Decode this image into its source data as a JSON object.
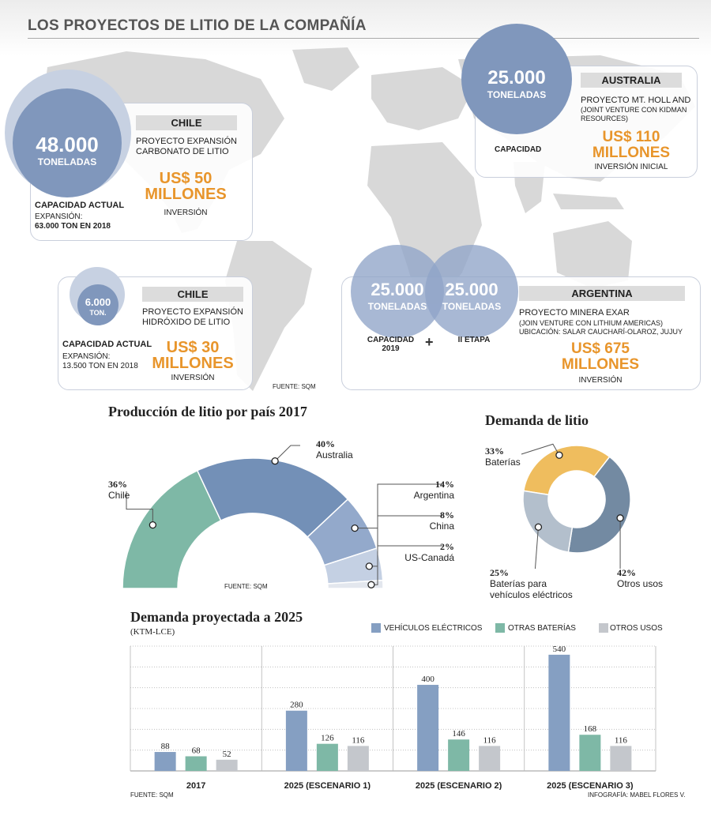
{
  "header": {
    "title": "LOS PROYECTOS DE LITIO DE LA COMPAÑÍA"
  },
  "projects": {
    "chile1": {
      "capacity_num": "48.000",
      "capacity_unit": "TONELADAS",
      "country": "CHILE",
      "project": "PROYECTO EXPANSIÓN CARBONATO DE LITIO",
      "cap_label": "CAPACIDAD ACTUAL",
      "expansion_label": "EXPANSIÓN:",
      "expansion_value": "63.000 TON EN 2018",
      "investment": "US$ 50 MILLONES",
      "investment_label": "INVERSIÓN"
    },
    "australia": {
      "capacity_num": "25.000",
      "capacity_unit": "TONELADAS",
      "country": "AUSTRALIA",
      "project": "PROYECTO MT. HOLL AND",
      "project_note": "(JOINT VENTURE CON KIDMAN RESOURCES)",
      "cap_label": "CAPACIDAD",
      "investment": "US$ 110 MILLONES",
      "investment_label": "INVERSIÓN INICIAL"
    },
    "chile2": {
      "capacity_num": "6.000",
      "capacity_unit": "TON.",
      "country": "CHILE",
      "project": "PROYECTO EXPANSIÓN HIDRÓXIDO DE LITIO",
      "cap_label": "CAPACIDAD ACTUAL",
      "expansion_label": "EXPANSIÓN:",
      "expansion_value": "13.500 TON EN 2018",
      "investment": "US$ 30 MILLONES",
      "investment_label": "INVERSIÓN"
    },
    "argentina": {
      "capacity_a": "25.000",
      "capacity_b": "25.000",
      "capacity_unit": "TONELADAS",
      "cap_a_label": "CAPACIDAD 2019",
      "plus": "+",
      "cap_b_label": "II ETAPA",
      "country": "ARGENTINA",
      "project": "PROYECTO MINERA EXAR",
      "project_note1": "(JOIN VENTURE CON LITHIUM AMERICAS)",
      "project_note2": "UBICACIÓN: SALAR CAUCHARÍ-OLAROZ, JUJUY",
      "investment": "US$ 675 MILLONES",
      "investment_label": "INVERSIÓN"
    },
    "source": "FUENTE: SQM"
  },
  "chart_data": [
    {
      "type": "pie",
      "title": "Producción de litio por país 2017",
      "slices": [
        {
          "label": "Chile",
          "value": 36,
          "pct_text": "36%",
          "color": "#7eb8a6"
        },
        {
          "label": "Australia",
          "value": 40,
          "pct_text": "40%",
          "color": "#7390b7"
        },
        {
          "label": "Argentina",
          "value": 14,
          "pct_text": "14%",
          "color": "#93a9cb"
        },
        {
          "label": "China",
          "value": 8,
          "pct_text": "8%",
          "color": "#c4d0e3"
        },
        {
          "label": "US-Canadá",
          "value": 2,
          "pct_text": "2%",
          "color": "#e3e7ee"
        }
      ],
      "source": "FUENTE: SQM"
    },
    {
      "type": "pie",
      "title": "Demanda de litio",
      "slices": [
        {
          "label": "Baterías",
          "value": 33,
          "pct_text": "33%",
          "color": "#efbd5e"
        },
        {
          "label": "Otros usos",
          "value": 42,
          "pct_text": "42%",
          "color": "#738aa2"
        },
        {
          "label": "Baterías para vehículos eléctricos",
          "value": 25,
          "pct_text": "25%",
          "color": "#b3bfcc"
        }
      ]
    },
    {
      "type": "bar",
      "title": "Demanda proyectada a 2025",
      "subtitle": "(KTM-LCE)",
      "categories": [
        "2017",
        "2025 (ESCENARIO 1)",
        "2025 (ESCENARIO 2)",
        "2025 (ESCENARIO 3)"
      ],
      "series": [
        {
          "name": "VEHÍCULOS ELÉCTRICOS",
          "values": [
            88,
            280,
            400,
            540
          ],
          "color": "#859fc2"
        },
        {
          "name": "OTRAS BATERÍAS",
          "values": [
            68,
            126,
            146,
            168
          ],
          "color": "#7eb8a6"
        },
        {
          "name": "OTROS USOS",
          "values": [
            52,
            116,
            116,
            116
          ],
          "color": "#c4c7cc"
        }
      ],
      "ylim": [
        0,
        580
      ],
      "grid": true,
      "source": "FUENTE: SQM",
      "credit": "INFOGRAFÍA: MABEL FLORES V."
    }
  ]
}
